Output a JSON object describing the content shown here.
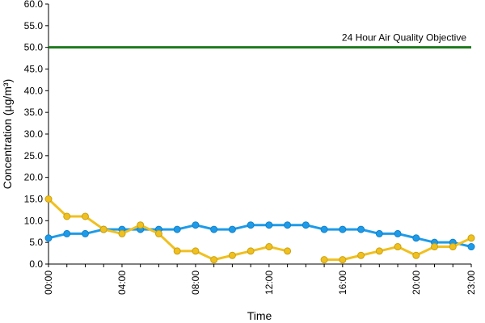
{
  "chart_data": {
    "type": "line",
    "xlabel": "Time",
    "ylabel": "Concentration (µg/m³)",
    "ylim": [
      0,
      60
    ],
    "yticks": [
      "0.0",
      "5.0",
      "10.0",
      "15.0",
      "20.0",
      "25.0",
      "30.0",
      "35.0",
      "40.0",
      "45.0",
      "50.0",
      "55.0",
      "60.0"
    ],
    "categories": [
      "00:00",
      "01:00",
      "02:00",
      "03:00",
      "04:00",
      "05:00",
      "06:00",
      "07:00",
      "08:00",
      "09:00",
      "10:00",
      "11:00",
      "12:00",
      "13:00",
      "14:00",
      "15:00",
      "16:00",
      "17:00",
      "18:00",
      "19:00",
      "20:00",
      "21:00",
      "22:00",
      "23:00"
    ],
    "xtick_labels": [
      "00:00",
      "04:00",
      "08:00",
      "12:00",
      "16:00",
      "20:00",
      "23:00"
    ],
    "grid": false,
    "series": [
      {
        "color": "#1E9BE8",
        "values": [
          6,
          7,
          7,
          8,
          8,
          8,
          8,
          8,
          9,
          8,
          8,
          9,
          9,
          9,
          9,
          8,
          8,
          8,
          7,
          7,
          6,
          5,
          5,
          4
        ]
      },
      {
        "color": "#F0C020",
        "values": [
          15,
          11,
          11,
          8,
          7,
          9,
          7,
          3,
          3,
          1,
          2,
          3,
          4,
          3,
          null,
          1,
          1,
          2,
          3,
          4,
          2,
          4,
          4,
          6
        ]
      }
    ],
    "reference_line": {
      "label": "24 Hour Air Quality Objective",
      "value": 50,
      "color": "#1E7A1E"
    }
  }
}
